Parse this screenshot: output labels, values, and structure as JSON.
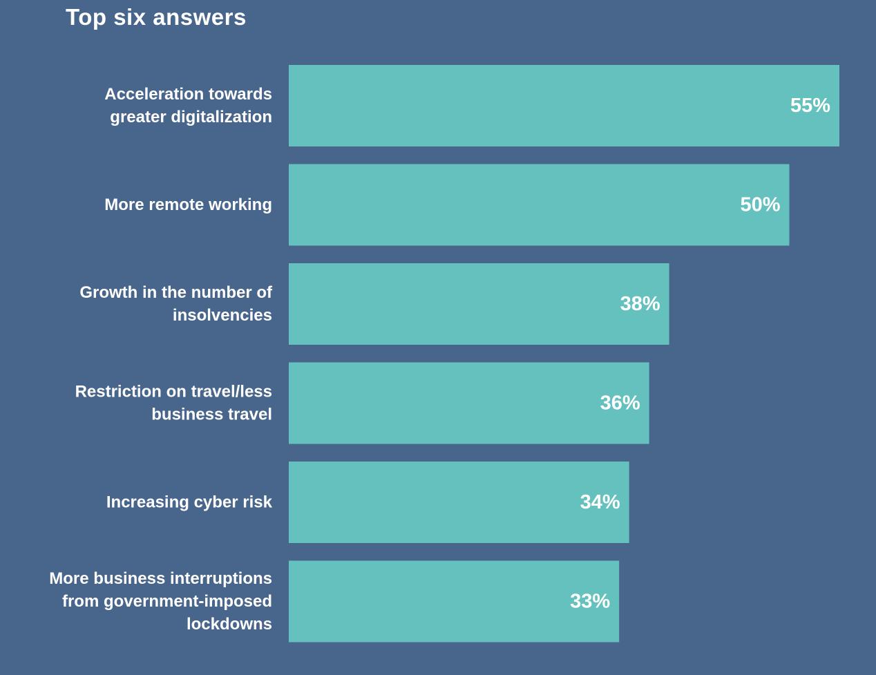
{
  "chart_data": {
    "type": "bar",
    "orientation": "horizontal",
    "title": "Top six answers",
    "categories": [
      [
        "Acceleration towards",
        "greater digitalization"
      ],
      [
        "More remote working"
      ],
      [
        "Growth in the number of",
        "insolvencies"
      ],
      [
        "Restriction on travel/less",
        "business travel"
      ],
      [
        "Increasing cyber risk"
      ],
      [
        "More business interruptions",
        "from government-imposed",
        "lockdowns"
      ]
    ],
    "values": [
      55,
      50,
      38,
      36,
      34,
      33
    ],
    "value_labels": [
      "55%",
      "50%",
      "38%",
      "36%",
      "34%",
      "33%"
    ],
    "unit": "%",
    "xlim": [
      0,
      55
    ],
    "grid": false,
    "legend": "none",
    "colors": {
      "background": "#48658b",
      "bar": "#64c1bd",
      "text": "#ffffff"
    }
  }
}
